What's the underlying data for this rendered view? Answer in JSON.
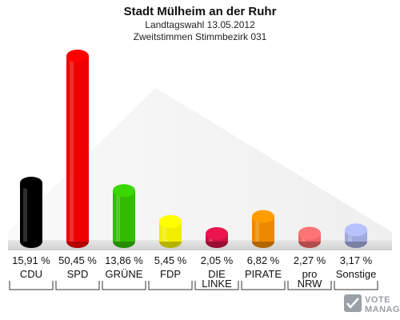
{
  "chart_data": {
    "type": "bar",
    "title": "Stadt Mülheim an der Ruhr",
    "subtitle_lines": [
      "Landtagswahl 13.05.2012",
      "Zweitstimmen Stimmbezirk 031"
    ],
    "categories": [
      [
        "CDU"
      ],
      [
        "SPD"
      ],
      [
        "GRÜNE"
      ],
      [
        "FDP"
      ],
      [
        "DIE",
        "LINKE"
      ],
      [
        "PIRATE"
      ],
      [
        "pro",
        "NRW"
      ],
      [
        "Sonstige"
      ]
    ],
    "values": [
      15.91,
      50.45,
      13.86,
      5.45,
      2.05,
      6.82,
      2.27,
      3.17
    ],
    "value_labels": [
      "15,91 %",
      "50,45 %",
      "13,86 %",
      "5,45 %",
      "2,05 %",
      "6,82 %",
      "2,27 %",
      "3,17 %"
    ],
    "colors": [
      "#000000",
      "#ee0000",
      "#33bb00",
      "#f2ee00",
      "#cc1144",
      "#ee8800",
      "#ee6666",
      "#a0aadd"
    ],
    "ylim": [
      0,
      50.45
    ],
    "grid": false,
    "legend": "none"
  },
  "watermark": {
    "line1": "VOTE",
    "line2": "MANAGER"
  }
}
